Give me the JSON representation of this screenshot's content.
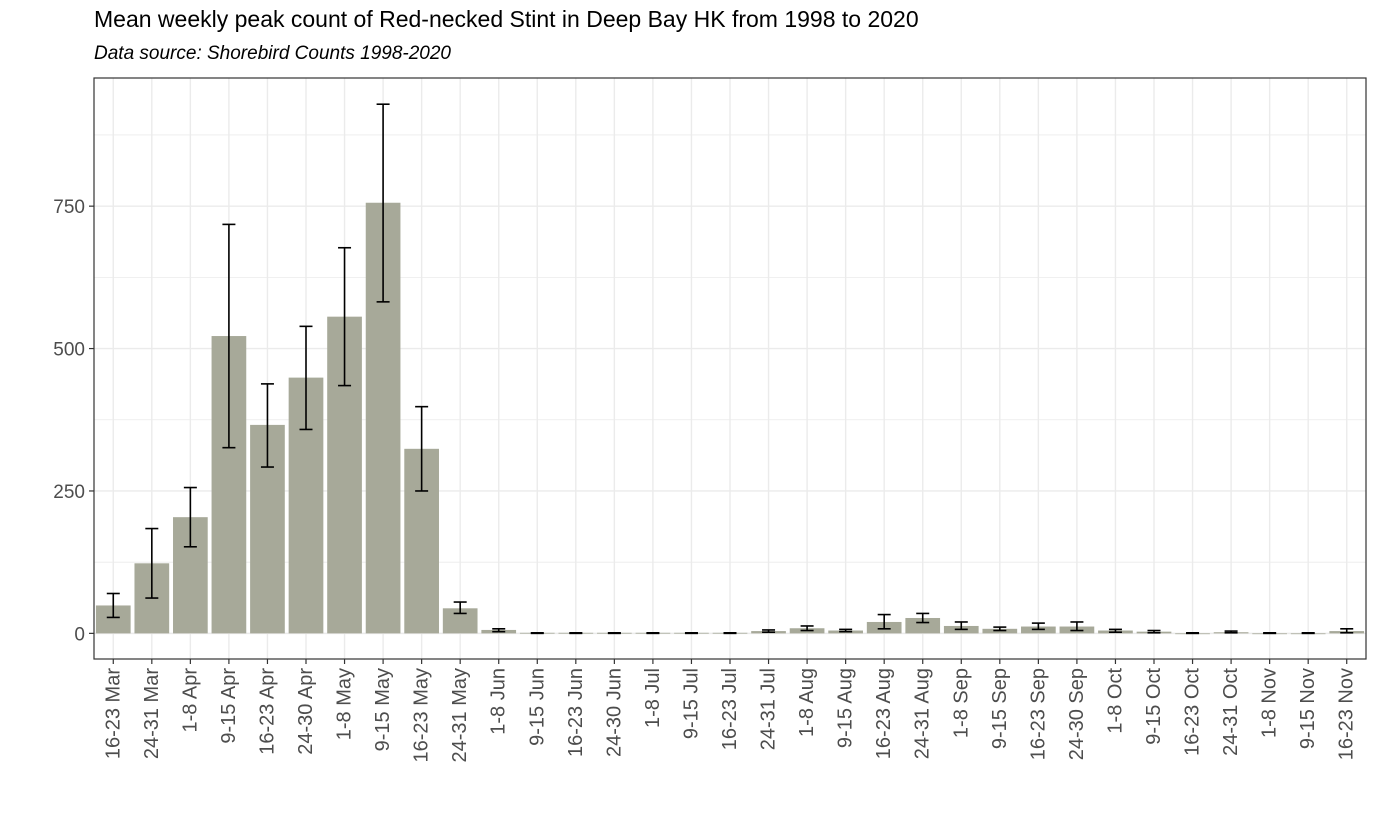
{
  "chart_data": {
    "type": "bar",
    "title": "Mean weekly peak count of Red-necked Stint in Deep Bay HK from 1998 to 2020",
    "subtitle": "Data source: Shorebird Counts 1998-2020",
    "xlabel": "",
    "ylabel": "",
    "ylim": [
      -45,
      975
    ],
    "yticks": [
      0,
      250,
      500,
      750
    ],
    "grid": true,
    "legend": "none",
    "bar_color": "#a7a999",
    "grid_color": "#ebebeb",
    "categories": [
      "16-23 Mar",
      "24-31 Mar",
      "1-8 Apr",
      "9-15 Apr",
      "16-23 Apr",
      "24-30 Apr",
      "1-8 May",
      "9-15 May",
      "16-23 May",
      "24-31 May",
      "1-8 Jun",
      "9-15 Jun",
      "16-23 Jun",
      "24-30 Jun",
      "1-8 Jul",
      "9-15 Jul",
      "16-23 Jul",
      "24-31 Jul",
      "1-8 Aug",
      "9-15 Aug",
      "16-23 Aug",
      "24-31 Aug",
      "1-8 Sep",
      "9-15 Sep",
      "16-23 Sep",
      "24-30 Sep",
      "1-8 Oct",
      "9-15 Oct",
      "16-23 Oct",
      "24-31 Oct",
      "1-8 Nov",
      "9-15 Nov",
      "16-23 Nov"
    ],
    "values": [
      49,
      123,
      204,
      522,
      366,
      449,
      556,
      756,
      324,
      44,
      6,
      1,
      1,
      1,
      1,
      1,
      1,
      4,
      9,
      5,
      20,
      27,
      13,
      8,
      12,
      12,
      5,
      3,
      0,
      2,
      0,
      0,
      4
    ],
    "error_low": [
      28,
      62,
      152,
      326,
      292,
      358,
      435,
      582,
      250,
      35,
      3,
      0,
      0,
      0,
      0,
      0,
      0,
      2,
      5,
      3,
      8,
      19,
      7,
      5,
      7,
      5,
      2,
      1,
      0,
      1,
      0,
      0,
      1
    ],
    "error_high": [
      70,
      184,
      256,
      718,
      438,
      539,
      677,
      929,
      398,
      55,
      8,
      1,
      1,
      1,
      1,
      1,
      1,
      6,
      13,
      7,
      33,
      35,
      20,
      11,
      18,
      20,
      7,
      5,
      1,
      4,
      1,
      1,
      8
    ]
  }
}
